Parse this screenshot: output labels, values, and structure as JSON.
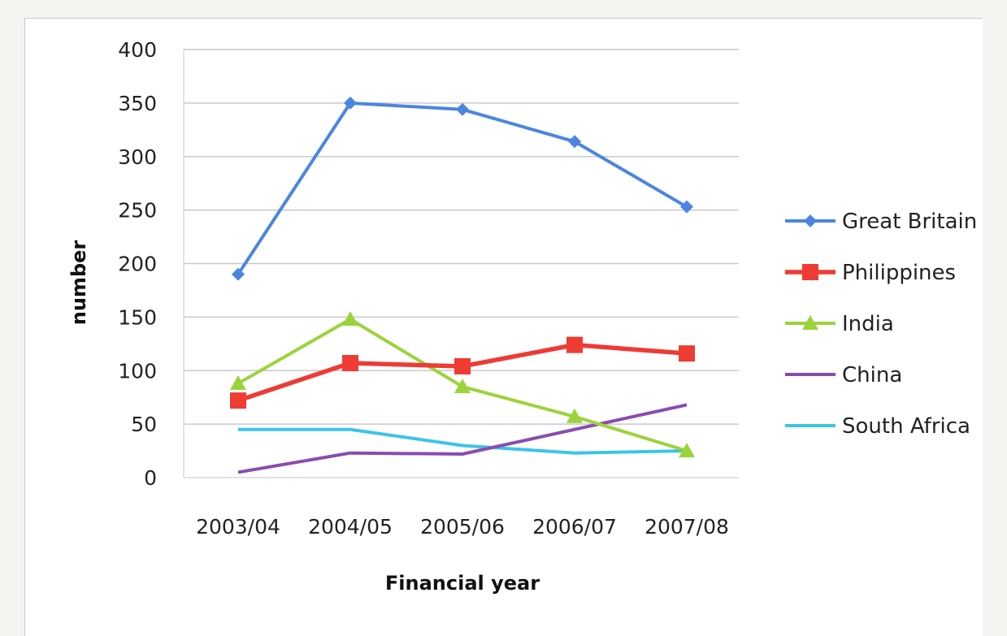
{
  "chart_data": {
    "type": "line",
    "title": "",
    "xlabel": "Financial year",
    "ylabel": "number",
    "categories": [
      "2003/04",
      "2004/05",
      "2005/06",
      "2006/07",
      "2007/08"
    ],
    "y_ticks": [
      "0",
      "50",
      "100",
      "150",
      "200",
      "250",
      "300",
      "350",
      "400"
    ],
    "ylim": [
      0,
      400
    ],
    "grid": true,
    "legend_position": "right",
    "series": [
      {
        "name": "Great Britain",
        "values": [
          190,
          350,
          344,
          314,
          253
        ],
        "color": "#4a86e0",
        "marker": "diamond"
      },
      {
        "name": "Philippines",
        "values": [
          72,
          107,
          104,
          124,
          116
        ],
        "color": "#ee3b34",
        "marker": "square"
      },
      {
        "name": "India",
        "values": [
          88,
          148,
          85,
          57,
          25
        ],
        "color": "#9bd33b",
        "marker": "triangle"
      },
      {
        "name": "China",
        "values": [
          5,
          23,
          22,
          45,
          68
        ],
        "color": "#8a4bb0",
        "marker": "none"
      },
      {
        "name": "South Africa",
        "values": [
          45,
          45,
          30,
          23,
          25
        ],
        "color": "#3cc4e8",
        "marker": "none"
      }
    ]
  }
}
